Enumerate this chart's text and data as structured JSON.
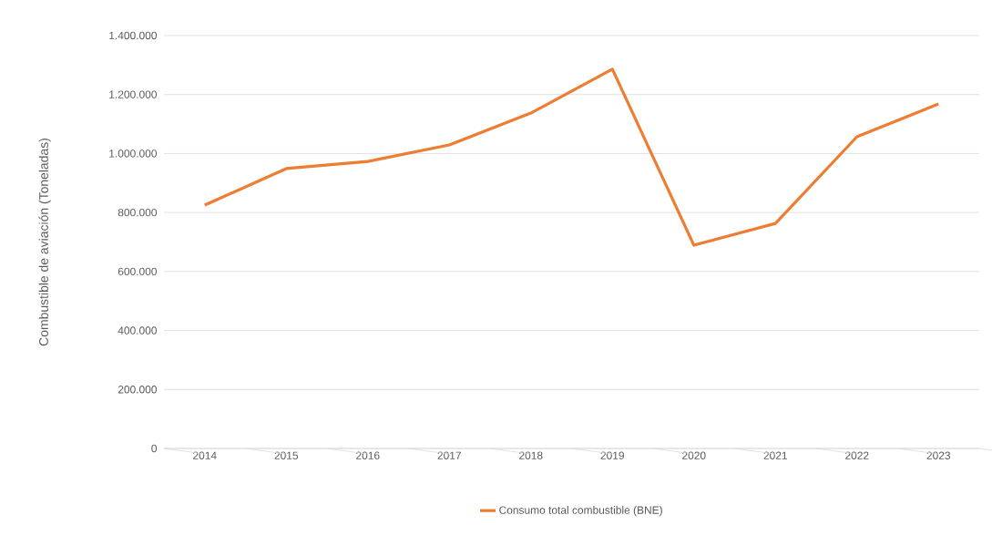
{
  "chart_data": {
    "type": "line",
    "ylabel": "Combustible de aviación (Toneladas)",
    "categories": [
      "2014",
      "2015",
      "2016",
      "2017",
      "2018",
      "2019",
      "2020",
      "2021",
      "2022",
      "2023"
    ],
    "series": [
      {
        "name": "Consumo total combustible (BNE)",
        "color": "#ed7d31",
        "values": [
          825000,
          949000,
          973000,
          1029000,
          1137000,
          1286000,
          689000,
          763000,
          1057000,
          1168000
        ]
      }
    ],
    "ylim": [
      0,
      1400000
    ],
    "yticks": [
      0,
      {
        "value": 200000,
        "label": "200.000"
      },
      {
        "value": 400000,
        "label": "400.000"
      },
      {
        "value": 600000,
        "label": "600.000"
      },
      {
        "value": 800000,
        "label": "800.000"
      },
      {
        "value": 1000000,
        "label": "1.000.000"
      },
      {
        "value": 1200000,
        "label": "1.200.000"
      },
      {
        "value": 1400000,
        "label": "1.400.000"
      }
    ],
    "grid": "y",
    "legend": "bottom",
    "marker": "none",
    "line_style": "solid"
  }
}
